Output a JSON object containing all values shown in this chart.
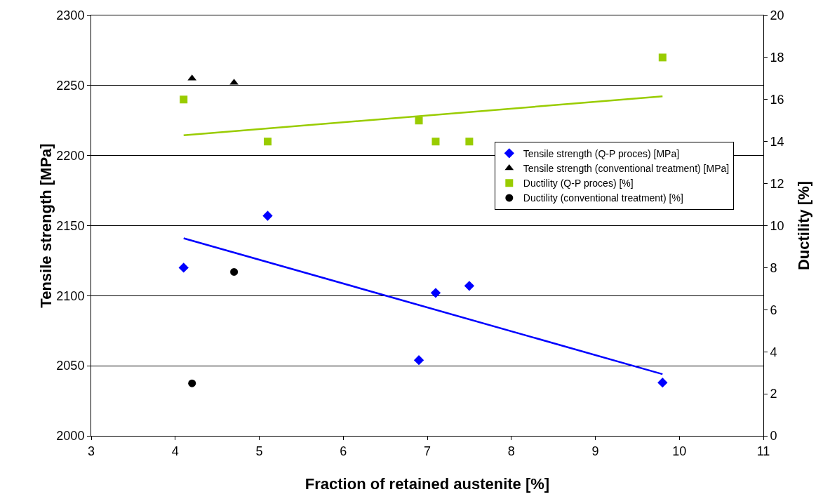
{
  "chart_data": {
    "type": "scatter",
    "xlabel": "Fraction of retained austenite [%]",
    "ylabel": "Tensile strength [MPa]",
    "y2label": "Ductility [%]",
    "xlim": [
      3,
      11
    ],
    "xticks": [
      3,
      4,
      5,
      6,
      7,
      8,
      9,
      10,
      11
    ],
    "ylim": [
      2000,
      2300
    ],
    "yticks": [
      2000,
      2050,
      2100,
      2150,
      2200,
      2250,
      2300
    ],
    "y2lim": [
      0,
      20
    ],
    "y2ticks": [
      0,
      2,
      4,
      6,
      8,
      10,
      12,
      14,
      16,
      18,
      20
    ],
    "grid": "y",
    "legend": "right",
    "series": [
      {
        "name": "Tensile strength (Q-P proces) [MPa]",
        "color": "#0000ff",
        "marker": "diamond",
        "x": [
          4.1,
          5.1,
          6.9,
          7.1,
          7.5,
          9.8
        ],
        "values": [
          2120,
          2157,
          2054,
          2102,
          2107,
          2038
        ]
      },
      {
        "name": "Tensile strength (conventional treatment) [MPa]",
        "color": "#000000",
        "marker": "triangle",
        "x": [
          4.2,
          4.7
        ],
        "values": [
          2255,
          2252
        ]
      },
      {
        "name": "Ductility (Q-P proces) [%]",
        "color": "#99cc00",
        "marker": "square",
        "axis": "y2",
        "x": [
          4.1,
          5.1,
          6.9,
          7.1,
          7.5,
          9.8
        ],
        "values": [
          16,
          14,
          15,
          14,
          14,
          18
        ]
      },
      {
        "name": "Ductility (conventional treatment) [%]",
        "color": "#000000",
        "marker": "circle",
        "axis": "y2",
        "x": [
          4.2,
          4.7
        ],
        "values": [
          2.5,
          7.8
        ]
      },
      {
        "type": "line",
        "color": "#0000ff",
        "marker": "none",
        "x": [
          4.1,
          9.8
        ],
        "values": [
          2141,
          2044
        ]
      },
      {
        "type": "line",
        "color": "#99cc00",
        "marker": "none",
        "axis": "y2",
        "x": [
          4.1,
          9.8
        ],
        "values": [
          14.3,
          16.15
        ]
      }
    ]
  }
}
